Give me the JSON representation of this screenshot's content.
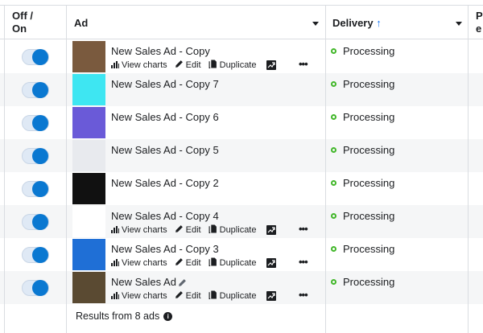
{
  "header": {
    "off_on": "Off /\nOn",
    "ad": "Ad",
    "delivery": "Delivery",
    "sort_arrow": "↑",
    "next_col": "P\ne"
  },
  "actions": {
    "view_charts": "View charts",
    "edit": "Edit",
    "duplicate": "Duplicate",
    "more": "•••"
  },
  "rows": [
    {
      "name": "New Sales Ad - Copy",
      "status": "Processing",
      "on": true,
      "thumb": "#7a5a3e",
      "actions": true
    },
    {
      "name": "New Sales Ad - Copy 7",
      "status": "Processing",
      "on": true,
      "thumb": "#3ee6f2",
      "actions": false
    },
    {
      "name": "New Sales Ad - Copy 6",
      "status": "Processing",
      "on": true,
      "thumb": "#6a5ad8",
      "actions": false
    },
    {
      "name": "New Sales Ad - Copy 5",
      "status": "Processing",
      "on": true,
      "thumb": "#e8eaee",
      "actions": false
    },
    {
      "name": "New Sales Ad - Copy 2",
      "status": "Processing",
      "on": true,
      "thumb": "#111111",
      "actions": false
    },
    {
      "name": "New Sales Ad - Copy 4",
      "status": "Processing",
      "on": true,
      "thumb": "#ffffff",
      "actions": true
    },
    {
      "name": "New Sales Ad - Copy 3",
      "status": "Processing",
      "on": true,
      "thumb": "#1f6fd6",
      "actions": true
    },
    {
      "name": "New Sales Ad",
      "status": "Processing",
      "on": true,
      "thumb": "#5a4a32",
      "actions": true
    }
  ],
  "footer": {
    "results": "Results from 8 ads"
  },
  "colors": {
    "accent": "#0a78d1",
    "status": "#42b72a"
  }
}
